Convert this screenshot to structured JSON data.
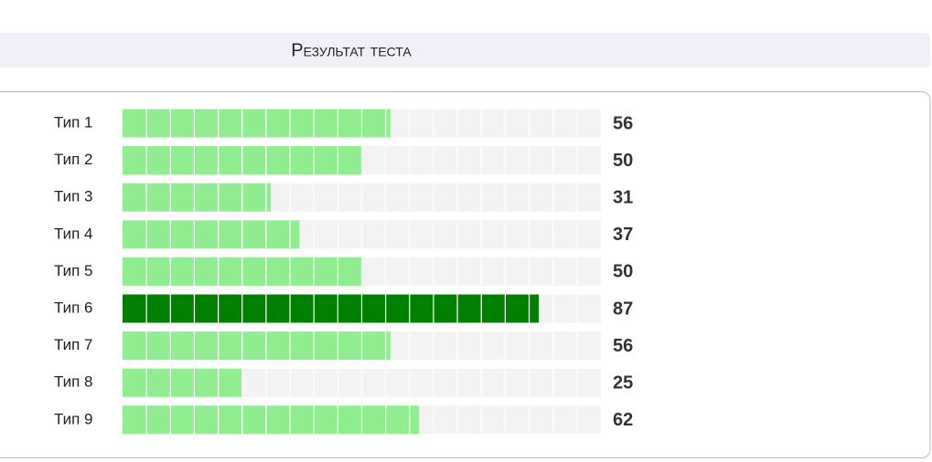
{
  "chart_data": {
    "type": "bar",
    "orientation": "horizontal",
    "title": "Результат теста",
    "categories": [
      "Тип 1",
      "Тип 2",
      "Тип 3",
      "Тип 4",
      "Тип 5",
      "Тип 6",
      "Тип 7",
      "Тип 8",
      "Тип 9"
    ],
    "values": [
      56,
      50,
      31,
      37,
      50,
      87,
      56,
      25,
      62
    ],
    "color": "#90ee90",
    "highlight_color": "#008000",
    "track_color": "#f3f3f3",
    "xlim": [
      0,
      100
    ],
    "xticks": [
      0,
      5,
      10,
      15,
      20,
      25,
      30,
      35,
      40,
      45,
      50,
      55,
      60,
      65,
      70,
      75,
      80,
      85,
      90,
      95,
      100
    ],
    "grid": true
  }
}
